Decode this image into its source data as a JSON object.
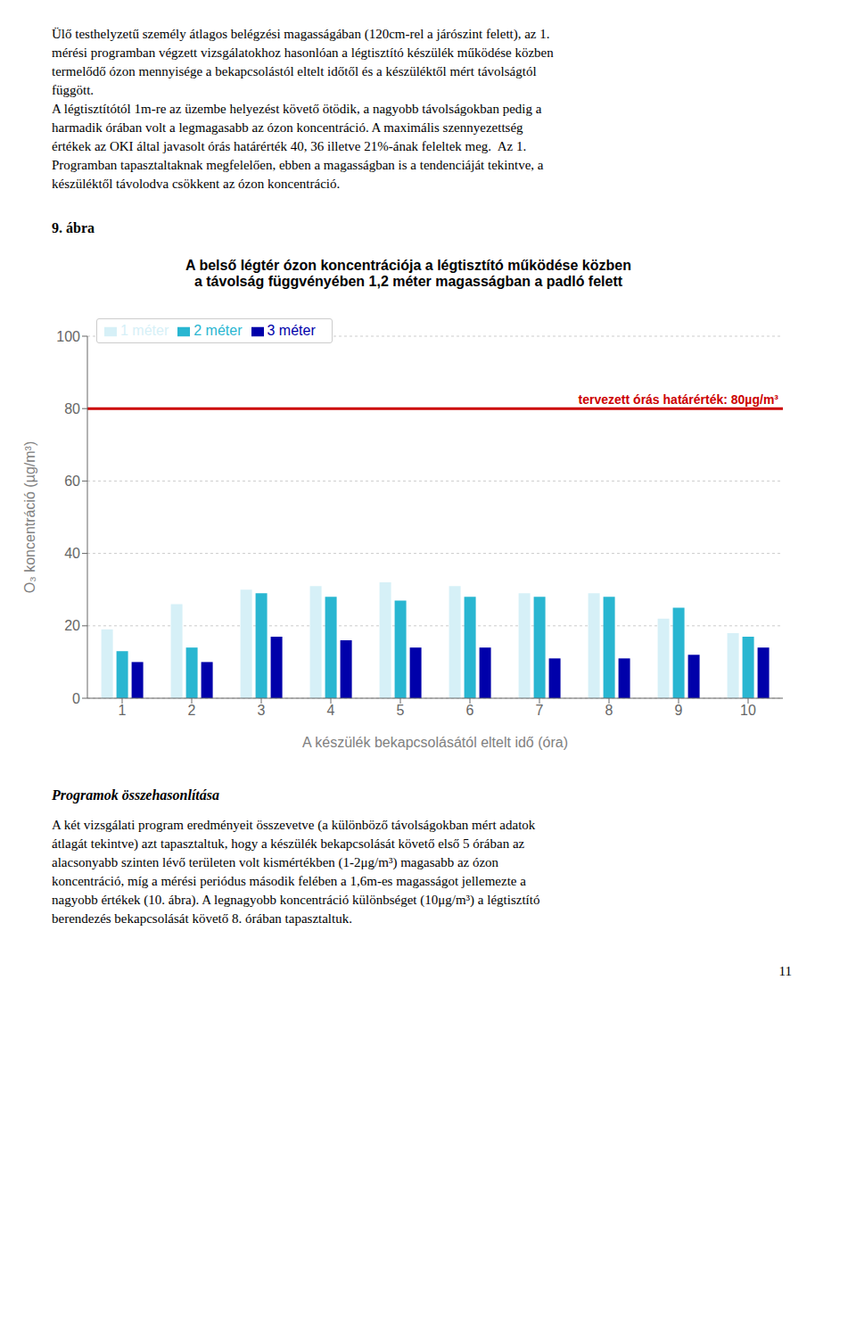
{
  "chart_data": {
    "type": "bar",
    "title": "A belső légtér ózon koncentrációja a légtisztító működése közben",
    "subtitle": "a távolság függvényében 1,2 méter magasságban a padló felett",
    "x_label": "A készülék bekapcsolásától eltelt idő (óra)",
    "y_label": "O₃ koncentráció (µg/m³)",
    "categories": [
      "1",
      "2",
      "3",
      "4",
      "5",
      "6",
      "7",
      "8",
      "9",
      "10"
    ],
    "series": [
      {
        "name": "1 méter",
        "color": "#d6f0f7",
        "values": [
          19,
          26,
          30,
          31,
          32,
          31,
          29,
          29,
          22,
          18
        ]
      },
      {
        "name": "2 méter",
        "color": "#29b6d1",
        "values": [
          13,
          14,
          29,
          28,
          27,
          28,
          28,
          28,
          25,
          17
        ]
      },
      {
        "name": "3 méter",
        "color": "#0000aa",
        "values": [
          10,
          10,
          17,
          16,
          14,
          14,
          11,
          11,
          12,
          14
        ]
      }
    ],
    "reference_line": {
      "value": 80,
      "label": "tervezett órás határérték: 80µg/m³",
      "color": "#cc0000"
    },
    "ylim": [
      0,
      100
    ],
    "yticks": [
      0,
      20,
      40,
      60,
      80,
      100
    ],
    "grid": true,
    "legend": "upper left",
    "annotations": [
      "Ülő testhelyzetű személy átlagos belégzési magasságában (120cm-rel a járószint felett), az 1.\nmérési programban végzett vizsgálatokhoz hasonlóan a légtisztító készülék működése közben\ntermelődő ózon mennyisége a bekapcsolástól eltelt időtől és a készüléktől mért távolságtól\nfüggött.\nA légtisztítótól 1m-re az üzembe helyezést követő ötödik, a nagyobb távolságokban pedig a\nharmadik órában volt a legmagasabb az ózon koncentráció. A maximális szennyezettség\nértékek az OKI által javasolt órás határérték 40, 36 illetve 21%-ának feleltek meg.  Az 1.\nProgramban tapasztaltaknak megfelelően, ebben a magasságban is a tendenciáját tekintve, a\nkészüléktől távolodva csökkent az ózon koncentráció.",
      "9. ábra",
      "Programok összehasonlítása",
      "A két vizsgálati program eredményeit összevetve (a különböző távolságokban mért adatok\nátlagát tekintve) azt tapasztaltuk, hogy a készülék bekapcsolását követő első 5 órában az\nalacsonyabb szinten lévő területen volt kismértékben (1-2μg/m³) magasabb az ózon\nkoncentráció, míg a mérési periódus második felében a 1,6m-es magasságot jellemezte a\nnagyobb értékek (10. ábra). A legnagyobb koncentráció különbséget (10μg/m³) a légtisztító\nberendezés bekapcsolását követő 8. órában tapasztaltuk.",
      "11"
    ]
  }
}
